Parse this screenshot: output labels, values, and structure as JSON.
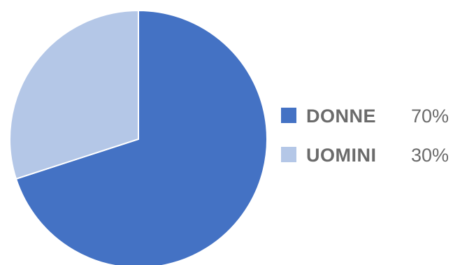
{
  "chart_data": {
    "type": "pie",
    "categories": [
      "DONNE",
      "UOMINI"
    ],
    "values": [
      70,
      30
    ],
    "value_labels": [
      "70%",
      "30%"
    ],
    "colors": [
      "#4472c4",
      "#b4c7e7"
    ],
    "start_angle_deg": 0,
    "direction": "clockwise",
    "legend_position": "right"
  }
}
